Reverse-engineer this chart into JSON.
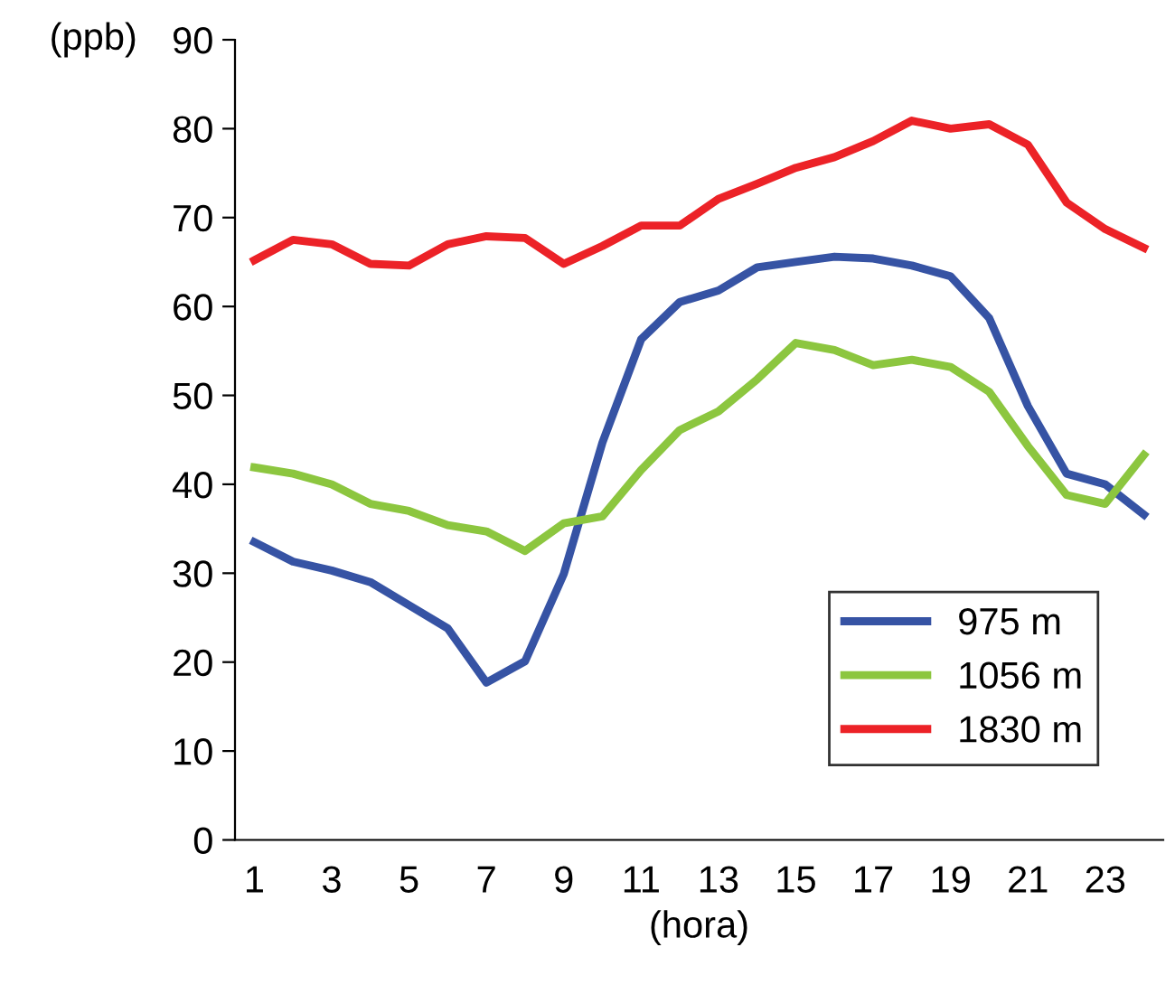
{
  "chart_data": {
    "type": "line",
    "ylabel": "(ppb)",
    "xlabel": "(hora)",
    "categories": [
      "1",
      null,
      "3",
      null,
      "5",
      null,
      "7",
      null,
      "9",
      null,
      "11",
      null,
      "13",
      null,
      "15",
      null,
      "17",
      null,
      "19",
      null,
      "21",
      null,
      "23",
      null
    ],
    "ylim": [
      0,
      90
    ],
    "yticks": [
      0,
      10,
      20,
      30,
      40,
      50,
      60,
      70,
      80,
      90
    ],
    "grid": false,
    "legend": "bottom right",
    "marker": "none",
    "line_style": "solid",
    "series": [
      {
        "name": "975 m",
        "color": "#3653a4",
        "values": [
          33.5,
          31.3,
          30.3,
          29,
          26.4,
          23.8,
          17.7,
          20.1,
          29.9,
          44.7,
          56.3,
          60.5,
          61.8,
          64.4,
          65,
          65.6,
          65.4,
          64.6,
          63.4,
          58.7,
          48.8,
          41.2,
          40,
          36.6
        ]
      },
      {
        "name": "1056 m",
        "color": "#8cc63f",
        "values": [
          41.9,
          41.2,
          40,
          37.8,
          37,
          35.4,
          34.7,
          32.5,
          35.6,
          36.4,
          41.6,
          46.1,
          48.2,
          51.8,
          55.9,
          55.1,
          53.4,
          54,
          53.2,
          50.4,
          44.3,
          38.8,
          37.8,
          43.3
        ]
      },
      {
        "name": "1830 m",
        "color": "#ec2227",
        "values": [
          65.2,
          67.5,
          67,
          64.8,
          64.6,
          67,
          67.9,
          67.7,
          64.8,
          66.8,
          69.1,
          69.1,
          72.1,
          73.8,
          75.6,
          76.8,
          78.6,
          80.9,
          80,
          80.5,
          78.2,
          71.7,
          68.7,
          66.6
        ]
      }
    ]
  }
}
